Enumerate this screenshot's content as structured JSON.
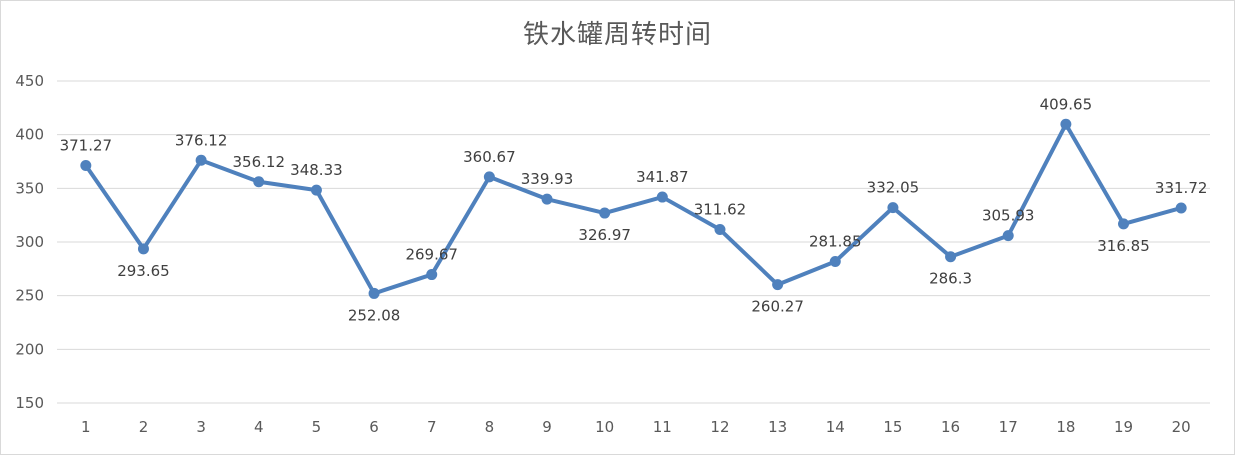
{
  "chart_data": {
    "type": "line",
    "title": "铁水罐周转时间",
    "xlabel": "",
    "ylabel": "",
    "categories": [
      "1",
      "2",
      "3",
      "4",
      "5",
      "6",
      "7",
      "8",
      "9",
      "10",
      "11",
      "12",
      "13",
      "14",
      "15",
      "16",
      "17",
      "18",
      "19",
      "20"
    ],
    "series": [
      {
        "values": [
          371.27,
          293.65,
          376.12,
          356.12,
          348.33,
          252.08,
          269.67,
          360.67,
          339.93,
          326.97,
          341.87,
          311.62,
          260.27,
          281.85,
          332.05,
          286.3,
          305.93,
          409.65,
          316.85,
          331.72
        ],
        "labels": [
          "371.27",
          "293.65",
          "376.12",
          "356.12",
          "348.33",
          "252.08",
          "269.67",
          "360.67",
          "339.93",
          "326.97",
          "341.87",
          "311.62",
          "260.27",
          "281.85",
          "332.05",
          "286.3",
          "305.93",
          "409.65",
          "316.85",
          "331.72"
        ],
        "color": "#4f81bd"
      }
    ],
    "ylim": [
      150,
      450
    ],
    "yticks": [
      150,
      200,
      250,
      300,
      350,
      400,
      450
    ],
    "grid": true,
    "legend": "none",
    "colors": {
      "line": "#4f81bd",
      "grid": "#d9d9d9",
      "text": "#595959"
    }
  }
}
